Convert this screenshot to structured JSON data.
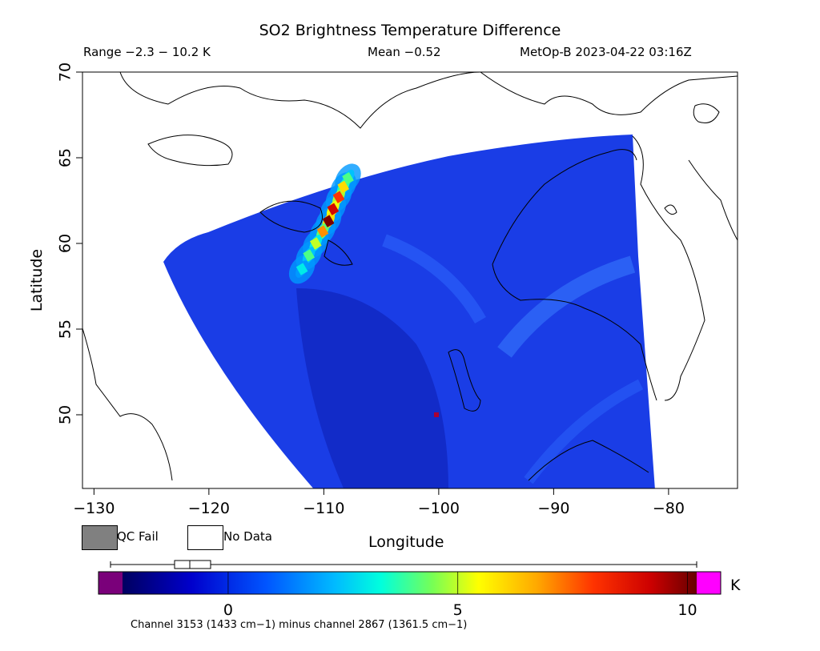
{
  "header": {
    "title": "SO2 Brightness Temperature Difference",
    "range": "Range −2.3 − 10.2 K",
    "mean": "Mean −0.52",
    "satellite": "MetOp-B 2023-04-22 03:16Z"
  },
  "chart_data": {
    "type": "heatmap",
    "xlabel": "Longitude",
    "ylabel": "Latitude",
    "xlim": [
      -131,
      -74
    ],
    "ylim": [
      45.7,
      70
    ],
    "x_ticks": [
      -130,
      -120,
      -110,
      -100,
      -90,
      -80
    ],
    "y_ticks": [
      50,
      55,
      60,
      65,
      70
    ],
    "colorbar": {
      "units": "K",
      "ticks": [
        0,
        5,
        10
      ],
      "range": [
        -2.3,
        10.2
      ],
      "colors": [
        "#7a007a",
        "#000066",
        "#0000cc",
        "#0066ff",
        "#00ccff",
        "#00ffcc",
        "#66ff66",
        "#ccff00",
        "#ffff00",
        "#ffaa00",
        "#ff4400",
        "#dd0000",
        "#880000",
        "#ff00ff"
      ]
    },
    "background_value": -0.5,
    "plume": {
      "description_value_peak": 10,
      "points": [
        {
          "lon": -107.9,
          "lat": 63.8,
          "value": 4
        },
        {
          "lon": -108.3,
          "lat": 63.3,
          "value": 6
        },
        {
          "lon": -108.7,
          "lat": 62.7,
          "value": 8
        },
        {
          "lon": -109.2,
          "lat": 62.0,
          "value": 9
        },
        {
          "lon": -109.6,
          "lat": 61.3,
          "value": 10
        },
        {
          "lon": -110.1,
          "lat": 60.7,
          "value": 7
        },
        {
          "lon": -110.7,
          "lat": 60.0,
          "value": 5
        },
        {
          "lon": -111.3,
          "lat": 59.3,
          "value": 4
        },
        {
          "lon": -111.9,
          "lat": 58.5,
          "value": 3
        }
      ]
    },
    "hotspot": {
      "lon": -100.2,
      "lat": 50.0,
      "value": 9
    }
  },
  "legend": {
    "qc_fail": "QC Fail",
    "no_data": "No Data",
    "qc_fail_color": "#808080",
    "no_data_color": "#ffffff"
  },
  "caption": "Channel 3153 (1433 cm−1) minus channel 2867 (1361.5 cm−1)"
}
